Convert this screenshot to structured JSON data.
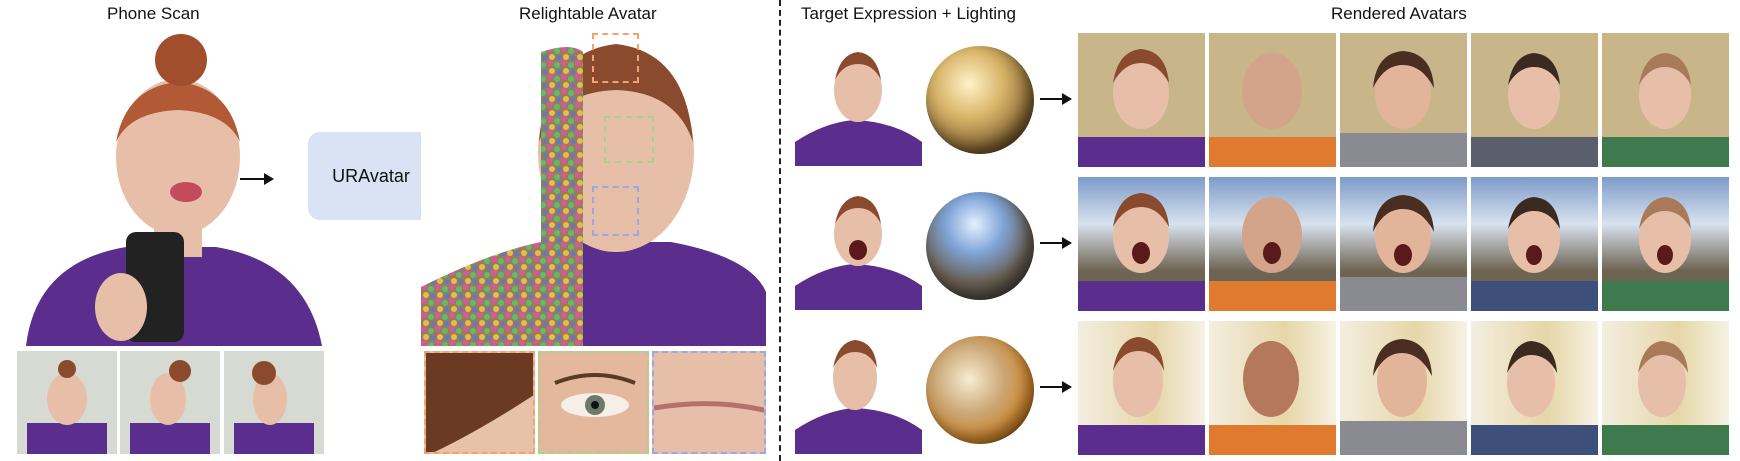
{
  "headers": {
    "phone_scan": "Phone Scan",
    "relightable": "Relightable Avatar",
    "target": "Target Expression + Lighting",
    "rendered": "Rendered Avatars"
  },
  "method_label": "URAvatar",
  "colors": {
    "shirt_purple": "#5b2d8c",
    "orange_shirt": "#e07a2e",
    "grey_hoodie": "#8a8a92",
    "green_shirt": "#3f7a4f",
    "skin": "#e7bfa8",
    "hair_auburn": "#8a4a2e",
    "crop_orange": "#f0a36e",
    "crop_green": "#a9d28a",
    "crop_blue": "#9aa8e6"
  },
  "rows": [
    {
      "env_map": "indoor-sunny-room-sphere",
      "background": "#c9b58a"
    },
    {
      "env_map": "snowy-mountain-sphere",
      "background": "#7d9bc9"
    },
    {
      "env_map": "bright-window-room-sphere",
      "background": "#f3eee0"
    }
  ],
  "subjects": [
    "woman-bun-purple",
    "bald-man-orange",
    "woman-hoodie-grey",
    "woman-ponytail-blue",
    "woman-green-top"
  ]
}
